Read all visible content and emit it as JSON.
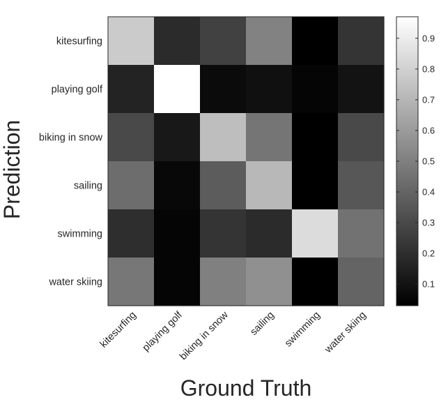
{
  "chart_data": {
    "type": "heatmap",
    "title": "",
    "xlabel": "Ground Truth",
    "ylabel": "Prediction",
    "x_categories": [
      "kitesurfing",
      "playing golf",
      "biking in snow",
      "sailing",
      "swimming",
      "water skiing"
    ],
    "y_categories": [
      "kitesurfing",
      "playing golf",
      "biking in snow",
      "sailing",
      "swimming",
      "water skiing"
    ],
    "values": [
      [
        0.78,
        0.19,
        0.27,
        0.51,
        0.03,
        0.22
      ],
      [
        0.16,
        1.0,
        0.07,
        0.09,
        0.05,
        0.1
      ],
      [
        0.3,
        0.12,
        0.73,
        0.46,
        0.03,
        0.3
      ],
      [
        0.43,
        0.06,
        0.37,
        0.71,
        0.03,
        0.35
      ],
      [
        0.2,
        0.05,
        0.22,
        0.19,
        0.84,
        0.45
      ],
      [
        0.47,
        0.05,
        0.5,
        0.56,
        0.03,
        0.4
      ]
    ],
    "colormap": "gray",
    "colorbar": {
      "min": 0.03,
      "max": 0.97,
      "ticks": [
        0.1,
        0.2,
        0.3,
        0.4,
        0.5,
        0.6,
        0.7,
        0.8,
        0.9
      ],
      "tick_labels": [
        "0.1",
        "0.2",
        "0.3",
        "0.4",
        "0.5",
        "0.6",
        "0.7",
        "0.8",
        "0.9"
      ]
    },
    "grid": false,
    "colorbar_placement": "right"
  }
}
